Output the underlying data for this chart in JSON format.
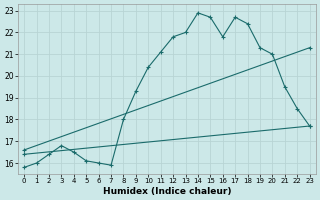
{
  "xlabel": "Humidex (Indice chaleur)",
  "xlim": [
    -0.5,
    23.5
  ],
  "ylim": [
    15.5,
    23.3
  ],
  "xticks": [
    0,
    1,
    2,
    3,
    4,
    5,
    6,
    7,
    8,
    9,
    10,
    11,
    12,
    13,
    14,
    15,
    16,
    17,
    18,
    19,
    20,
    21,
    22,
    23
  ],
  "yticks": [
    16,
    17,
    18,
    19,
    20,
    21,
    22,
    23
  ],
  "background_color": "#cce8e8",
  "grid_color": "#b8d4d4",
  "line_color": "#1a6b6b",
  "line1_x": [
    0,
    1,
    2,
    3,
    4,
    5,
    6,
    7,
    8,
    9,
    10,
    11,
    12,
    13,
    14,
    15,
    16,
    17,
    18,
    19,
    20,
    21,
    22,
    23
  ],
  "line1_y": [
    15.8,
    16.0,
    16.4,
    16.8,
    16.5,
    16.1,
    16.0,
    15.9,
    18.0,
    19.3,
    20.4,
    21.1,
    21.8,
    22.0,
    22.9,
    22.7,
    21.8,
    22.7,
    22.4,
    21.3,
    21.0,
    19.5,
    18.5,
    17.7
  ],
  "line2_x": [
    0,
    23
  ],
  "line2_y": [
    16.6,
    21.3
  ],
  "line3_x": [
    0,
    23
  ],
  "line3_y": [
    16.4,
    17.7
  ],
  "markersize": 3.0
}
